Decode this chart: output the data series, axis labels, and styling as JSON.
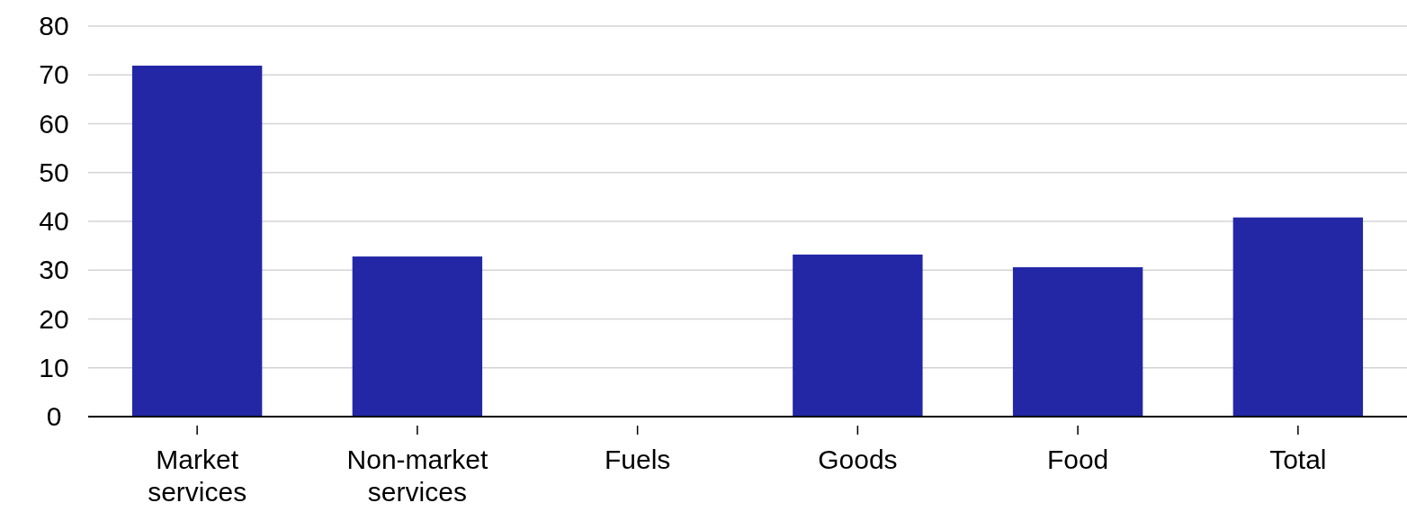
{
  "chart_data": {
    "type": "bar",
    "categories": [
      "Market services",
      "Non-market services",
      "Fuels",
      "Goods",
      "Food",
      "Total"
    ],
    "values": [
      71.9,
      32.8,
      0,
      33.2,
      30.6,
      40.8
    ],
    "color": "#2327a6",
    "ylim": [
      0,
      80
    ],
    "yticks": [
      0,
      10,
      20,
      30,
      40,
      50,
      60,
      70,
      80
    ],
    "grid": "y"
  }
}
